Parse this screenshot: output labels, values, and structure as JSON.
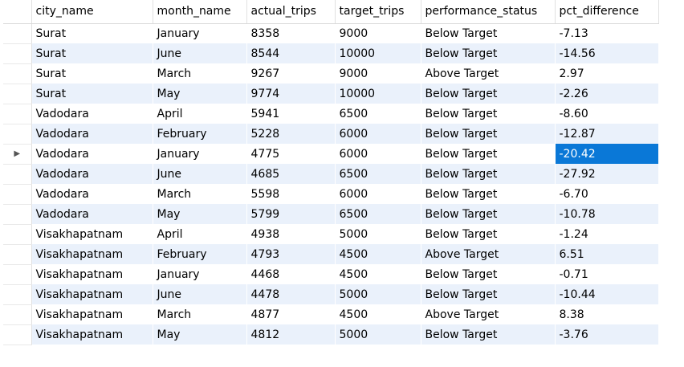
{
  "grid": {
    "columns": [
      "city_name",
      "month_name",
      "actual_trips",
      "target_trips",
      "performance_status",
      "pct_difference"
    ],
    "current_row_indicator": "▶",
    "current_row_index": 6,
    "selected_cell": {
      "row": 6,
      "column": "pct_difference"
    },
    "rows": [
      [
        "Surat",
        "January",
        "8358",
        "9000",
        "Below Target",
        "-7.13"
      ],
      [
        "Surat",
        "June",
        "8544",
        "10000",
        "Below Target",
        "-14.56"
      ],
      [
        "Surat",
        "March",
        "9267",
        "9000",
        "Above Target",
        "2.97"
      ],
      [
        "Surat",
        "May",
        "9774",
        "10000",
        "Below Target",
        "-2.26"
      ],
      [
        "Vadodara",
        "April",
        "5941",
        "6500",
        "Below Target",
        "-8.60"
      ],
      [
        "Vadodara",
        "February",
        "5228",
        "6000",
        "Below Target",
        "-12.87"
      ],
      [
        "Vadodara",
        "January",
        "4775",
        "6000",
        "Below Target",
        "-20.42"
      ],
      [
        "Vadodara",
        "June",
        "4685",
        "6500",
        "Below Target",
        "-27.92"
      ],
      [
        "Vadodara",
        "March",
        "5598",
        "6000",
        "Below Target",
        "-6.70"
      ],
      [
        "Vadodara",
        "May",
        "5799",
        "6500",
        "Below Target",
        "-10.78"
      ],
      [
        "Visakhapatnam",
        "April",
        "4938",
        "5000",
        "Below Target",
        "-1.24"
      ],
      [
        "Visakhapatnam",
        "February",
        "4793",
        "4500",
        "Above Target",
        "6.51"
      ],
      [
        "Visakhapatnam",
        "January",
        "4468",
        "4500",
        "Below Target",
        "-0.71"
      ],
      [
        "Visakhapatnam",
        "June",
        "4478",
        "5000",
        "Below Target",
        "-10.44"
      ],
      [
        "Visakhapatnam",
        "March",
        "4877",
        "4500",
        "Above Target",
        "8.38"
      ],
      [
        "Visakhapatnam",
        "May",
        "4812",
        "5000",
        "Below Target",
        "-3.76"
      ]
    ]
  },
  "colors": {
    "stripe": "#eaf1fb",
    "selection": "#0a78d7"
  }
}
